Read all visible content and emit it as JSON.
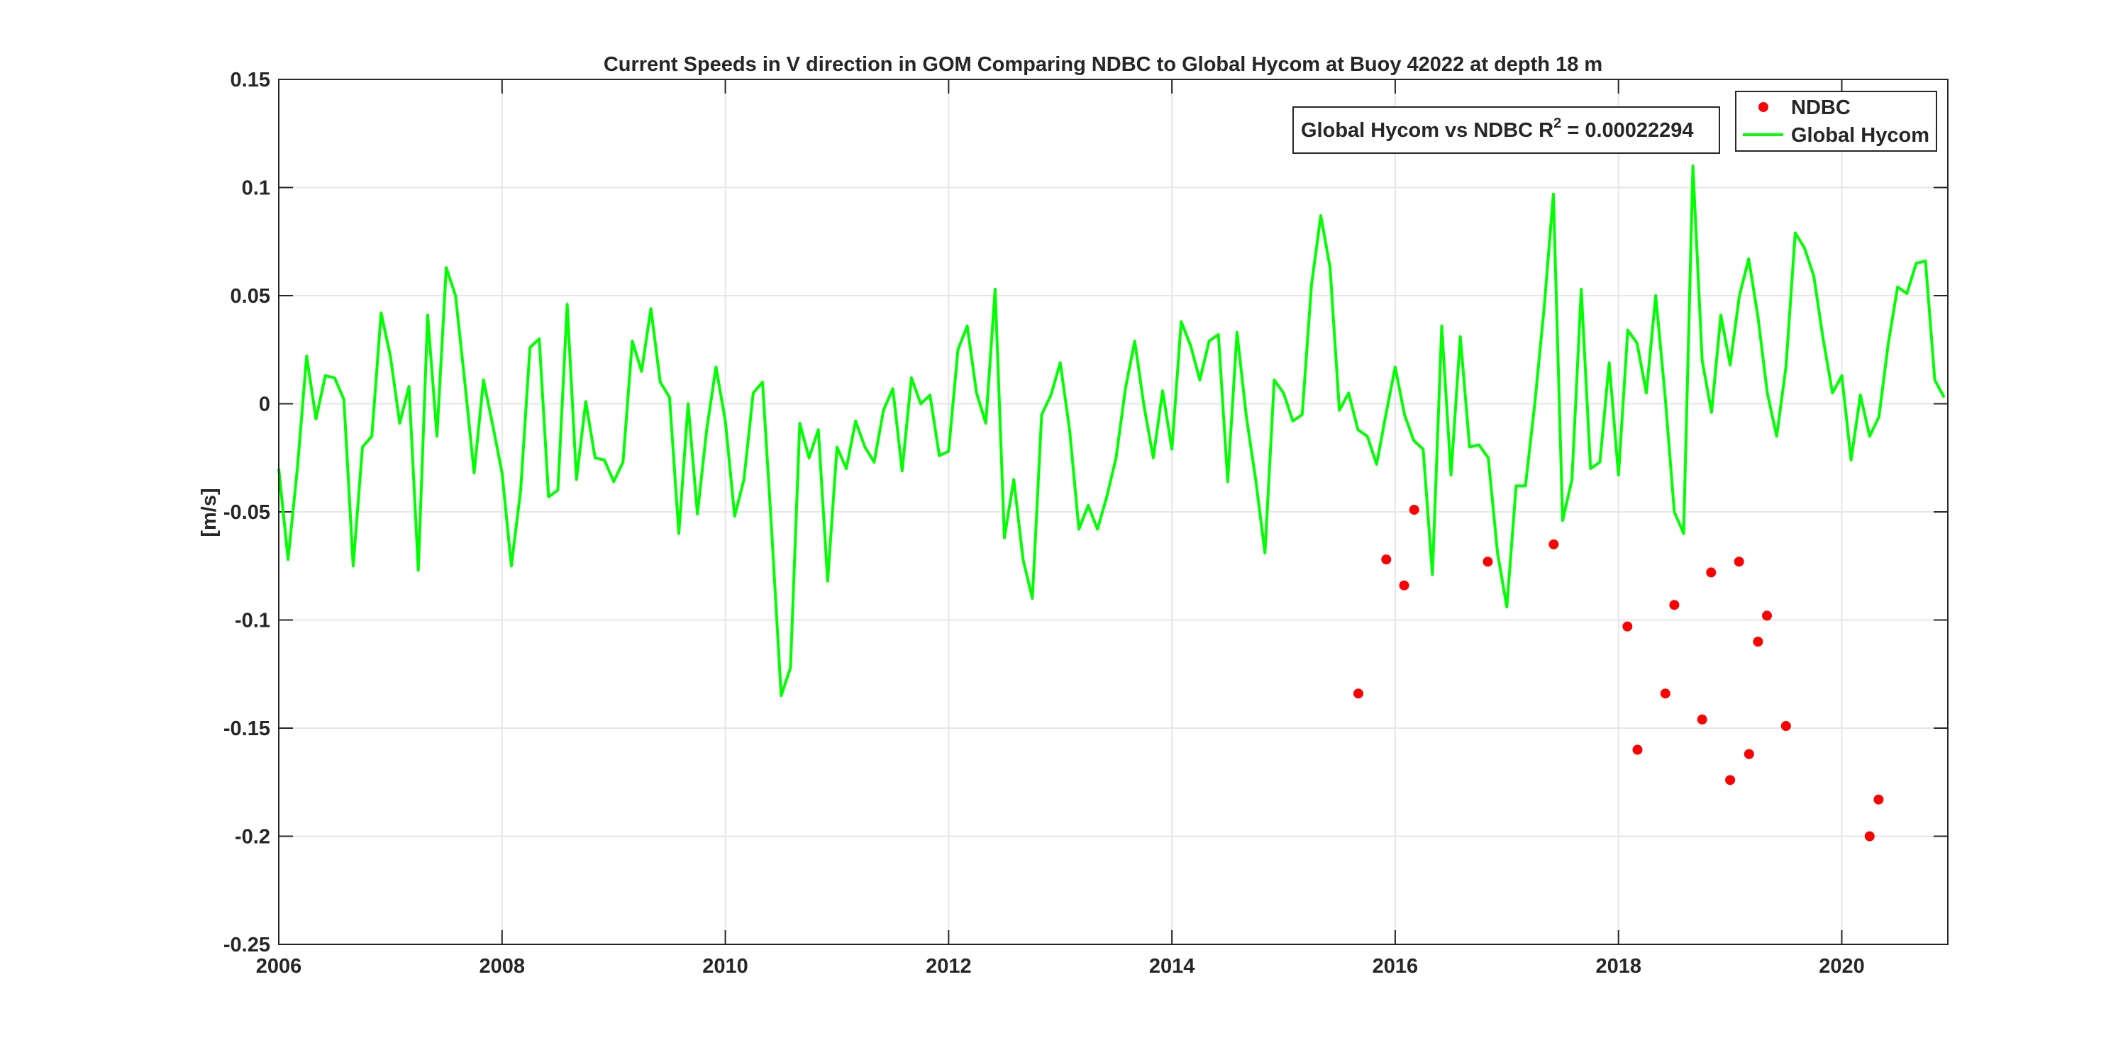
{
  "chart_data": {
    "type": "line",
    "title": "Current Speeds in V direction in GOM Comparing NDBC to Global Hycom at Buoy  42022  at depth  18 m",
    "xlabel": "",
    "ylabel": "[m/s]",
    "xlim": [
      2006.0,
      2020.95
    ],
    "ylim": [
      -0.25,
      0.15
    ],
    "x_ticks": [
      2006,
      2008,
      2010,
      2012,
      2014,
      2016,
      2018,
      2020
    ],
    "y_ticks": [
      -0.25,
      -0.2,
      -0.15,
      -0.1,
      -0.05,
      0,
      0.05,
      0.1,
      0.15
    ],
    "x_tick_labels": [
      "2006",
      "2008",
      "2010",
      "2012",
      "2014",
      "2016",
      "2018",
      "2020"
    ],
    "y_tick_labels": [
      "-0.25",
      "-0.2",
      "-0.15",
      "-0.1",
      "-0.05",
      "0",
      "0.05",
      "0.1",
      "0.15"
    ],
    "grid": true,
    "legend_position": "top-right",
    "annotation": {
      "prefix": "Global Hycom vs NDBC R",
      "superscript": "2",
      "suffix": " = 0.00022294"
    },
    "series": [
      {
        "name": "NDBC",
        "type": "scatter",
        "color": "#ff0000",
        "points": [
          [
            2015.67,
            -0.134
          ],
          [
            2015.92,
            -0.072
          ],
          [
            2016.08,
            -0.084
          ],
          [
            2016.17,
            -0.049
          ],
          [
            2016.83,
            -0.073
          ],
          [
            2017.42,
            -0.065
          ],
          [
            2018.08,
            -0.103
          ],
          [
            2018.17,
            -0.16
          ],
          [
            2018.42,
            -0.134
          ],
          [
            2018.5,
            -0.093
          ],
          [
            2018.75,
            -0.146
          ],
          [
            2018.83,
            -0.078
          ],
          [
            2019.0,
            -0.174
          ],
          [
            2019.08,
            -0.073
          ],
          [
            2019.17,
            -0.162
          ],
          [
            2019.25,
            -0.11
          ],
          [
            2019.33,
            -0.098
          ],
          [
            2019.5,
            -0.149
          ],
          [
            2020.25,
            -0.2
          ],
          [
            2020.33,
            -0.183
          ]
        ]
      },
      {
        "name": "Global Hycom",
        "type": "line",
        "color": "#00ff00",
        "x_start": 2006.0,
        "x_step": 0.0833333,
        "values": [
          -0.03,
          -0.072,
          -0.03,
          0.022,
          -0.007,
          0.013,
          0.012,
          0.002,
          -0.075,
          -0.02,
          -0.015,
          0.042,
          0.022,
          -0.009,
          0.008,
          -0.077,
          0.041,
          -0.015,
          0.063,
          0.05,
          0.01,
          -0.032,
          0.011,
          -0.01,
          -0.032,
          -0.075,
          -0.04,
          0.026,
          0.03,
          -0.043,
          -0.04,
          0.046,
          -0.035,
          0.001,
          -0.025,
          -0.026,
          -0.036,
          -0.027,
          0.029,
          0.015,
          0.044,
          0.01,
          0.003,
          -0.06,
          0.0,
          -0.051,
          -0.012,
          0.017,
          -0.008,
          -0.052,
          -0.035,
          0.005,
          0.01,
          -0.06,
          -0.135,
          -0.122,
          -0.009,
          -0.025,
          -0.012,
          -0.082,
          -0.02,
          -0.03,
          -0.008,
          -0.02,
          -0.027,
          -0.003,
          0.007,
          -0.031,
          0.012,
          0.0,
          0.004,
          -0.024,
          -0.022,
          0.025,
          0.036,
          0.005,
          -0.009,
          0.053,
          -0.062,
          -0.035,
          -0.072,
          -0.09,
          -0.005,
          0.004,
          0.019,
          -0.012,
          -0.058,
          -0.047,
          -0.058,
          -0.043,
          -0.025,
          0.007,
          0.029,
          -0.001,
          -0.025,
          0.006,
          -0.021,
          0.038,
          0.027,
          0.011,
          0.029,
          0.032,
          -0.036,
          0.033,
          -0.006,
          -0.035,
          -0.069,
          0.011,
          0.005,
          -0.008,
          -0.005,
          0.055,
          0.087,
          0.063,
          -0.003,
          0.005,
          -0.012,
          -0.015,
          -0.028,
          -0.005,
          0.017,
          -0.005,
          -0.017,
          -0.021,
          -0.079,
          0.036,
          -0.033,
          0.031,
          -0.02,
          -0.019,
          -0.025,
          -0.069,
          -0.094,
          -0.038,
          -0.038,
          0.0,
          0.044,
          0.097,
          -0.054,
          -0.035,
          0.053,
          -0.03,
          -0.027,
          0.019,
          -0.033,
          0.034,
          0.028,
          0.005,
          0.05,
          0.004,
          -0.05,
          -0.06,
          0.11,
          0.02,
          -0.004,
          0.041,
          0.018,
          0.05,
          0.067,
          0.04,
          0.005,
          -0.015,
          0.017,
          0.079,
          0.072,
          0.059,
          0.03,
          0.005,
          0.013,
          -0.026,
          0.004,
          -0.015,
          -0.006,
          0.028,
          0.054,
          0.051,
          0.065,
          0.066,
          0.011,
          0.003
        ]
      }
    ]
  }
}
